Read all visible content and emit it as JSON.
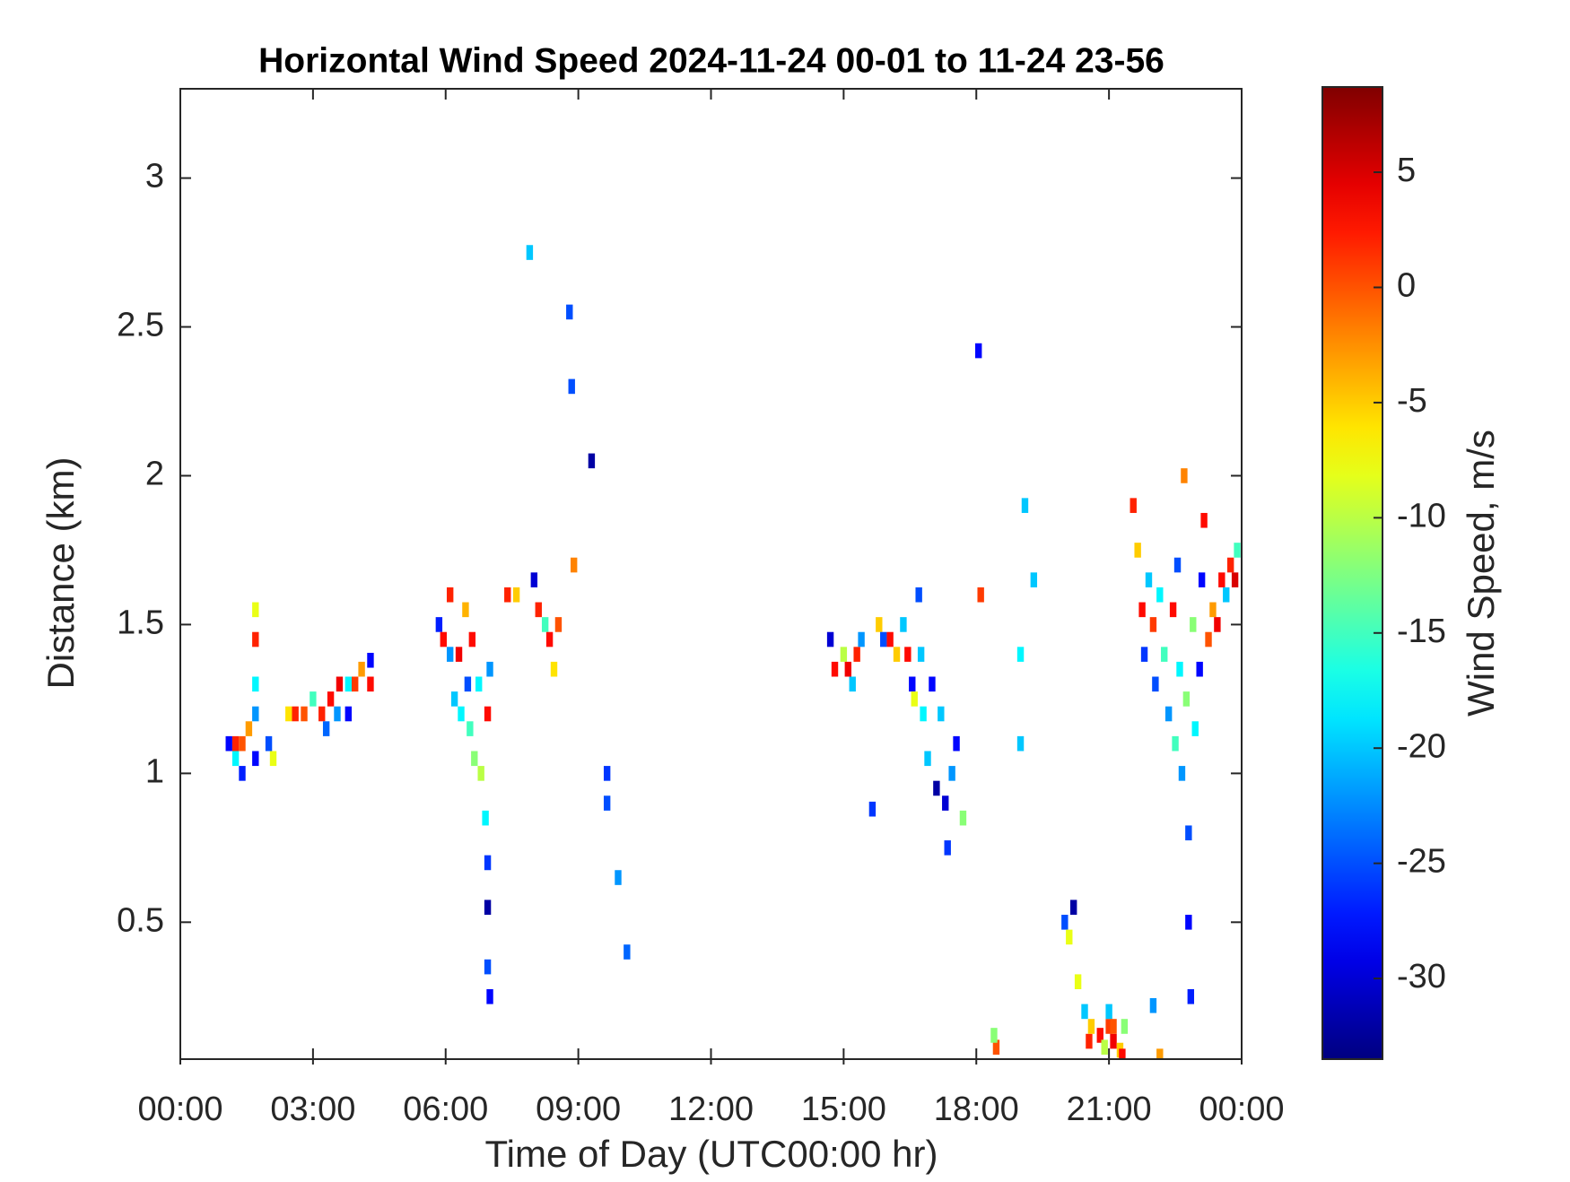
{
  "chart_data": {
    "type": "heatmap",
    "title": "Horizontal Wind Speed 2024-11-24 00-01 to 11-24 23-56",
    "x_label": "Time of Day (UTC00:00 hr)",
    "y_label": "Distance (km)",
    "colorbar_label": "Wind Speed, m/s",
    "colormap": "jet",
    "xlim": [
      0,
      24
    ],
    "xticks": [
      {
        "value": 0,
        "label": "00:00"
      },
      {
        "value": 3,
        "label": "03:00"
      },
      {
        "value": 6,
        "label": "06:00"
      },
      {
        "value": 9,
        "label": "09:00"
      },
      {
        "value": 12,
        "label": "12:00"
      },
      {
        "value": 15,
        "label": "15:00"
      },
      {
        "value": 18,
        "label": "18:00"
      },
      {
        "value": 21,
        "label": "21:00"
      },
      {
        "value": 24,
        "label": "00:00"
      }
    ],
    "ylim": [
      0.04,
      3.3
    ],
    "yticks": [
      0.5,
      1,
      1.5,
      2,
      2.5,
      3
    ],
    "clim": [
      -33.5,
      8.7
    ],
    "cticks": [
      -30,
      -25,
      -20,
      -15,
      -10,
      -5,
      0,
      5
    ],
    "x": [
      1.1,
      1.25,
      1.25,
      1.4,
      1.4,
      1.55,
      1.7,
      1.7,
      1.7,
      1.7,
      1.7,
      2.0,
      2.1,
      2.45,
      2.6,
      2.8,
      3.0,
      3.2,
      3.3,
      3.4,
      3.55,
      3.6,
      3.8,
      3.8,
      3.95,
      4.1,
      4.3,
      4.3,
      5.85,
      5.95,
      6.1,
      6.1,
      6.2,
      6.3,
      6.35,
      6.45,
      6.5,
      6.55,
      6.6,
      6.65,
      6.75,
      6.8,
      6.9,
      6.95,
      6.95,
      7.0,
      6.95,
      6.95,
      7.0,
      7.4,
      7.6,
      7.9,
      8.0,
      8.1,
      8.25,
      8.35,
      8.45,
      8.55,
      8.8,
      8.85,
      8.9,
      9.3,
      9.65,
      9.65,
      9.9,
      10.1,
      14.7,
      14.8,
      15.0,
      15.1,
      15.2,
      15.3,
      15.4,
      15.8,
      15.9,
      16.05,
      16.2,
      16.35,
      16.45,
      16.55,
      16.6,
      16.7,
      16.75,
      16.8,
      16.9,
      17.0,
      17.1,
      17.2,
      17.3,
      17.35,
      17.45,
      17.55,
      17.7,
      18.05,
      18.1,
      18.45,
      18.4,
      19.0,
      19.0,
      19.1,
      19.3,
      15.65,
      20.0,
      20.1,
      20.2,
      20.3,
      20.45,
      20.55,
      20.6,
      20.8,
      20.9,
      21.0,
      21.1,
      21.25,
      21.35,
      21.3,
      21.0,
      21.1,
      21.55,
      21.65,
      21.75,
      21.8,
      21.9,
      22.0,
      22.05,
      22.15,
      22.25,
      22.35,
      22.45,
      22.5,
      22.55,
      22.6,
      22.65,
      22.7,
      22.75,
      22.8,
      22.8,
      22.85,
      22.9,
      22.95,
      23.05,
      23.1,
      23.15,
      23.25,
      23.35,
      23.45,
      23.55,
      23.65,
      23.75,
      23.85,
      23.9,
      22.15,
      22.0
    ],
    "y": [
      1.1,
      1.1,
      1.05,
      1.1,
      1.0,
      1.15,
      1.45,
      1.3,
      1.55,
      1.2,
      1.05,
      1.1,
      1.05,
      1.2,
      1.2,
      1.2,
      1.25,
      1.2,
      1.15,
      1.25,
      1.2,
      1.3,
      1.3,
      1.2,
      1.3,
      1.35,
      1.3,
      1.38,
      1.5,
      1.45,
      1.4,
      1.6,
      1.25,
      1.4,
      1.2,
      1.55,
      1.3,
      1.15,
      1.45,
      1.05,
      1.3,
      1.0,
      0.85,
      1.2,
      0.7,
      1.35,
      0.55,
      0.35,
      0.25,
      1.6,
      1.6,
      2.75,
      1.65,
      1.55,
      1.5,
      1.45,
      1.35,
      1.5,
      2.55,
      2.3,
      1.7,
      2.05,
      1.0,
      0.9,
      0.65,
      0.4,
      1.45,
      1.35,
      1.4,
      1.35,
      1.3,
      1.4,
      1.45,
      1.5,
      1.45,
      1.45,
      1.4,
      1.5,
      1.4,
      1.3,
      1.25,
      1.6,
      1.4,
      1.2,
      1.05,
      1.3,
      0.95,
      1.2,
      0.9,
      0.75,
      1.0,
      1.1,
      0.85,
      2.42,
      1.6,
      0.08,
      0.12,
      1.4,
      1.1,
      1.9,
      1.65,
      0.88,
      0.5,
      0.45,
      0.55,
      0.3,
      0.2,
      0.1,
      0.15,
      0.12,
      0.08,
      0.15,
      0.1,
      0.07,
      0.15,
      0.05,
      0.2,
      0.15,
      1.9,
      1.75,
      1.55,
      1.4,
      1.65,
      1.5,
      1.3,
      1.6,
      1.4,
      1.2,
      1.55,
      1.1,
      1.7,
      1.35,
      1.0,
      2.0,
      1.25,
      0.8,
      0.5,
      0.25,
      1.5,
      1.15,
      1.35,
      1.65,
      1.85,
      1.45,
      1.55,
      1.5,
      1.65,
      1.6,
      1.7,
      1.65,
      1.75,
      0.05,
      0.22
    ],
    "values": [
      -28,
      2,
      -18,
      0,
      -27,
      -3,
      2,
      -18,
      -8,
      -22,
      -28,
      -25,
      -8,
      -6,
      2,
      0,
      -15,
      2,
      -24,
      3,
      -22,
      4,
      -18,
      -28,
      1,
      -3,
      3,
      -28,
      -27,
      3,
      -22,
      2,
      -20,
      4,
      -18,
      -4,
      -25,
      -15,
      3,
      -12,
      -18,
      -10,
      -18,
      3,
      -26,
      -22,
      -32,
      -25,
      -28,
      2,
      -5,
      -20,
      -30,
      2,
      -15,
      3,
      -6,
      0,
      -25,
      -25,
      -2,
      -32,
      -26,
      -25,
      -22,
      -24,
      -30,
      3,
      -10,
      4,
      -20,
      2,
      -22,
      -5,
      -25,
      3,
      -5,
      -20,
      3,
      -28,
      -8,
      -25,
      -20,
      -18,
      -20,
      -28,
      -32,
      -20,
      -30,
      -26,
      -22,
      -28,
      -12,
      -28,
      1,
      0,
      -12,
      -18,
      -20,
      -20,
      -20,
      -26,
      -25,
      -8,
      -32,
      -8,
      -20,
      2,
      -5,
      3,
      -10,
      1,
      4,
      -5,
      -12,
      3,
      -20,
      0,
      2,
      -5,
      3,
      -26,
      -20,
      1,
      -25,
      -18,
      -15,
      -22,
      3,
      -15,
      -25,
      -18,
      -22,
      -2,
      -12,
      -25,
      -28,
      -27,
      -12,
      -18,
      -28,
      -28,
      3,
      0,
      -3,
      4,
      3,
      -20,
      2,
      5,
      -15,
      -3,
      -22
    ]
  }
}
